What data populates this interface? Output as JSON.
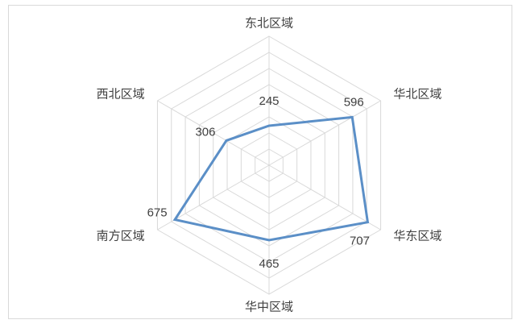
{
  "chart_data": {
    "type": "radar",
    "title": "",
    "categories": [
      "东北区域",
      "华北区域",
      "华东区域",
      "华中区域",
      "南方区域",
      "西北区域"
    ],
    "series": [
      {
        "values": [
          245,
          596,
          707,
          465,
          675,
          306
        ],
        "color": "#5B8FC7"
      }
    ],
    "rlim": [
      0,
      800
    ],
    "grid_rings": 8,
    "data_labels": true,
    "legend": "none"
  }
}
